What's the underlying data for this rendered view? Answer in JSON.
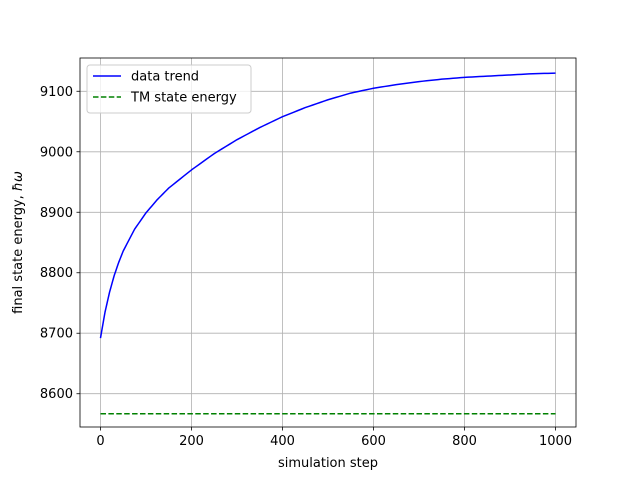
{
  "chart_data": {
    "type": "line",
    "title": "",
    "xlabel": "simulation step",
    "ylabel": "final state energy, ",
    "ylabel_symbol": "ħω",
    "xlim": [
      -45,
      1045
    ],
    "ylim": [
      8545,
      9155
    ],
    "xticks": [
      0,
      200,
      400,
      600,
      800,
      1000
    ],
    "xtick_labels": [
      "0",
      "200",
      "400",
      "600",
      "800",
      "1000"
    ],
    "yticks": [
      8600,
      8700,
      8800,
      8900,
      9000,
      9100
    ],
    "ytick_labels": [
      "8600",
      "8700",
      "8800",
      "8900",
      "9000",
      "9100"
    ],
    "grid": true,
    "legend_position": "top-left",
    "series": [
      {
        "name": "data trend",
        "color": "#0000ff",
        "style": "solid",
        "x": [
          0,
          10,
          20,
          30,
          40,
          50,
          75,
          100,
          125,
          150,
          200,
          250,
          300,
          350,
          400,
          450,
          500,
          550,
          600,
          650,
          700,
          750,
          800,
          850,
          900,
          950,
          1000
        ],
        "y": [
          8692,
          8735,
          8768,
          8795,
          8817,
          8836,
          8872,
          8899,
          8921,
          8940,
          8970,
          8997,
          9020,
          9040,
          9058,
          9073,
          9086,
          9097,
          9105,
          9111,
          9116,
          9120,
          9123,
          9125,
          9127,
          9129,
          9130
        ]
      },
      {
        "name": "TM state energy",
        "color": "#008000",
        "style": "dashed",
        "x": [
          0,
          1000
        ],
        "y": [
          8567,
          8567
        ]
      }
    ]
  }
}
